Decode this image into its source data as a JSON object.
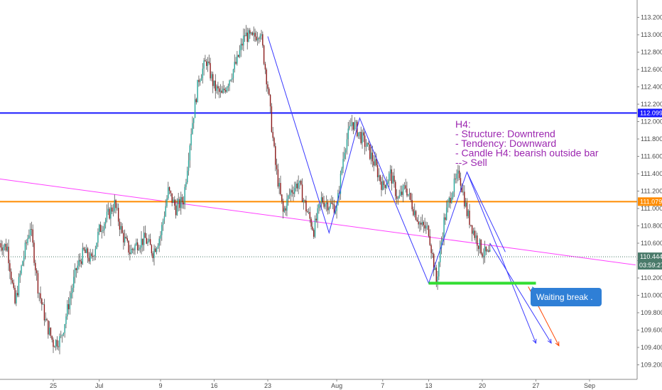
{
  "chart_data": {
    "type": "candlestick",
    "title": "",
    "xlabel": "",
    "ylabel": "",
    "ylim": [
      109.15,
      113.25
    ],
    "grid": false,
    "y_ticks": [
      109.2,
      109.4,
      109.6,
      109.8,
      110.0,
      110.2,
      110.4,
      110.6,
      110.8,
      111.0,
      111.2,
      111.4,
      111.6,
      111.8,
      112.0,
      112.2,
      112.4,
      112.6,
      112.8,
      113.0,
      113.2
    ],
    "x_ticks": [
      {
        "label": "25",
        "day": 8
      },
      {
        "label": "Jul",
        "day": 14
      },
      {
        "label": "9",
        "day": 22
      },
      {
        "label": "16",
        "day": 29
      },
      {
        "label": "23",
        "day": 36
      },
      {
        "label": "Aug",
        "day": 45
      },
      {
        "label": "7",
        "day": 51
      },
      {
        "label": "13",
        "day": 57
      },
      {
        "label": "20",
        "day": 64
      },
      {
        "label": "27",
        "day": 71
      },
      {
        "label": "Sep",
        "day": 78
      }
    ],
    "x_range": [
      1,
      84
    ],
    "candle_data_days": [
      1,
      65
    ],
    "price_path": [
      [
        1,
        110.6
      ],
      [
        2,
        110.55
      ],
      [
        3,
        109.9
      ],
      [
        4,
        110.4
      ],
      [
        5,
        110.8
      ],
      [
        6,
        110.1
      ],
      [
        7,
        109.7
      ],
      [
        8,
        109.45
      ],
      [
        9,
        109.5
      ],
      [
        10,
        109.9
      ],
      [
        11,
        110.3
      ],
      [
        12,
        110.5
      ],
      [
        13,
        110.4
      ],
      [
        14,
        110.75
      ],
      [
        15,
        110.9
      ],
      [
        16,
        111.05
      ],
      [
        17,
        110.7
      ],
      [
        18,
        110.5
      ],
      [
        19,
        110.6
      ],
      [
        20,
        110.65
      ],
      [
        21,
        110.5
      ],
      [
        22,
        110.7
      ],
      [
        23,
        111.2
      ],
      [
        24,
        111.0
      ],
      [
        25,
        111.1
      ],
      [
        26,
        111.9
      ],
      [
        27,
        112.5
      ],
      [
        28,
        112.7
      ],
      [
        29,
        112.4
      ],
      [
        30,
        112.3
      ],
      [
        31,
        112.5
      ],
      [
        32,
        112.7
      ],
      [
        33,
        113.0
      ],
      [
        34,
        112.95
      ],
      [
        35,
        113.05
      ],
      [
        36,
        112.4
      ],
      [
        37,
        111.5
      ],
      [
        38,
        110.95
      ],
      [
        39,
        111.2
      ],
      [
        40,
        111.3
      ],
      [
        41,
        111.0
      ],
      [
        42,
        110.75
      ],
      [
        43,
        111.1
      ],
      [
        44,
        111.05
      ],
      [
        45,
        111.0
      ],
      [
        46,
        111.7
      ],
      [
        47,
        112.0
      ],
      [
        48,
        111.85
      ],
      [
        49,
        111.7
      ],
      [
        50,
        111.5
      ],
      [
        51,
        111.25
      ],
      [
        52,
        111.4
      ],
      [
        53,
        111.1
      ],
      [
        54,
        111.25
      ],
      [
        55,
        111.0
      ],
      [
        56,
        110.8
      ],
      [
        57,
        110.75
      ],
      [
        58,
        110.15
      ],
      [
        59,
        110.85
      ],
      [
        60,
        111.2
      ],
      [
        61,
        111.4
      ],
      [
        62,
        110.95
      ],
      [
        63,
        110.7
      ],
      [
        64,
        110.5
      ],
      [
        65,
        110.45
      ]
    ],
    "horizontal_lines": [
      {
        "value": 112.099,
        "label": "112.099",
        "color": "#1a1aff"
      },
      {
        "value": 111.079,
        "label": "111.079",
        "color": "#ff8c00"
      }
    ],
    "current_price": {
      "value": 110.444,
      "label": "110.444",
      "countdown": "03:59:27",
      "color": "#4a7a6a"
    },
    "trendline": {
      "start": [
        1,
        111.34
      ],
      "end": [
        84,
        110.35
      ],
      "color": "#ff40ff"
    },
    "wave_path": [
      [
        36,
        112.98
      ],
      [
        44,
        110.72
      ],
      [
        48,
        112.04
      ],
      [
        57,
        110.14
      ],
      [
        62,
        111.42
      ],
      [
        67,
        110.5
      ]
    ],
    "projection_lines": [
      {
        "points": [
          [
            62,
            111.42
          ],
          [
            71,
            109.45
          ]
        ],
        "color": "#3a3aff"
      },
      {
        "points": [
          [
            65,
            110.6
          ],
          [
            73,
            109.45
          ]
        ],
        "color": "#3a3aff"
      },
      {
        "points": [
          [
            70,
            110.1
          ],
          [
            74,
            109.42
          ]
        ],
        "color": "#ff4500"
      }
    ],
    "support_line": {
      "value": 110.14,
      "start": 57,
      "end": 71,
      "color": "#33dd33"
    },
    "annotation_lines": [
      "H4:",
      "- Structure: Downtrend",
      "- Tendency: Downward",
      "- Candle H4: bearish outside bar",
      "--> Sell"
    ],
    "callout": {
      "text": "Waiting break .",
      "color": "#2f7fd6"
    },
    "colors": {
      "bull": "#26a69a",
      "bear": "#8b1a1a",
      "wick": "#555555",
      "axis": "#888888"
    }
  }
}
